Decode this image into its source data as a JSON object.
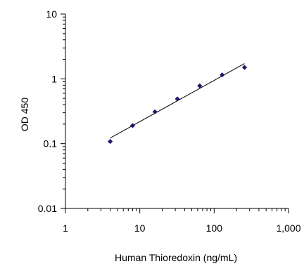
{
  "chart_data": {
    "type": "scatter",
    "xlabel": "Human Thioredoxin (ng/mL)",
    "ylabel": "OD 450",
    "x_scale": "log",
    "y_scale": "log",
    "xlim": [
      1,
      1000
    ],
    "ylim": [
      0.01,
      10
    ],
    "x_ticks": [
      {
        "value": 1,
        "label": "1"
      },
      {
        "value": 10,
        "label": "10"
      },
      {
        "value": 100,
        "label": "100"
      },
      {
        "value": 1000,
        "label": "1,000"
      }
    ],
    "y_ticks": [
      {
        "value": 0.01,
        "label": "0.01"
      },
      {
        "value": 0.1,
        "label": "0.1"
      },
      {
        "value": 1,
        "label": "1"
      },
      {
        "value": 10,
        "label": "10"
      }
    ],
    "grid": false,
    "marker_color": "#1a1a6e",
    "line_color": "#000000",
    "series": [
      {
        "x": [
          4,
          8,
          16,
          32,
          64,
          128,
          256
        ],
        "y": [
          0.108,
          0.19,
          0.31,
          0.49,
          0.78,
          1.15,
          1.5
        ]
      }
    ],
    "trendline": {
      "x": [
        4,
        256
      ],
      "y": [
        0.122,
        1.72
      ]
    }
  }
}
